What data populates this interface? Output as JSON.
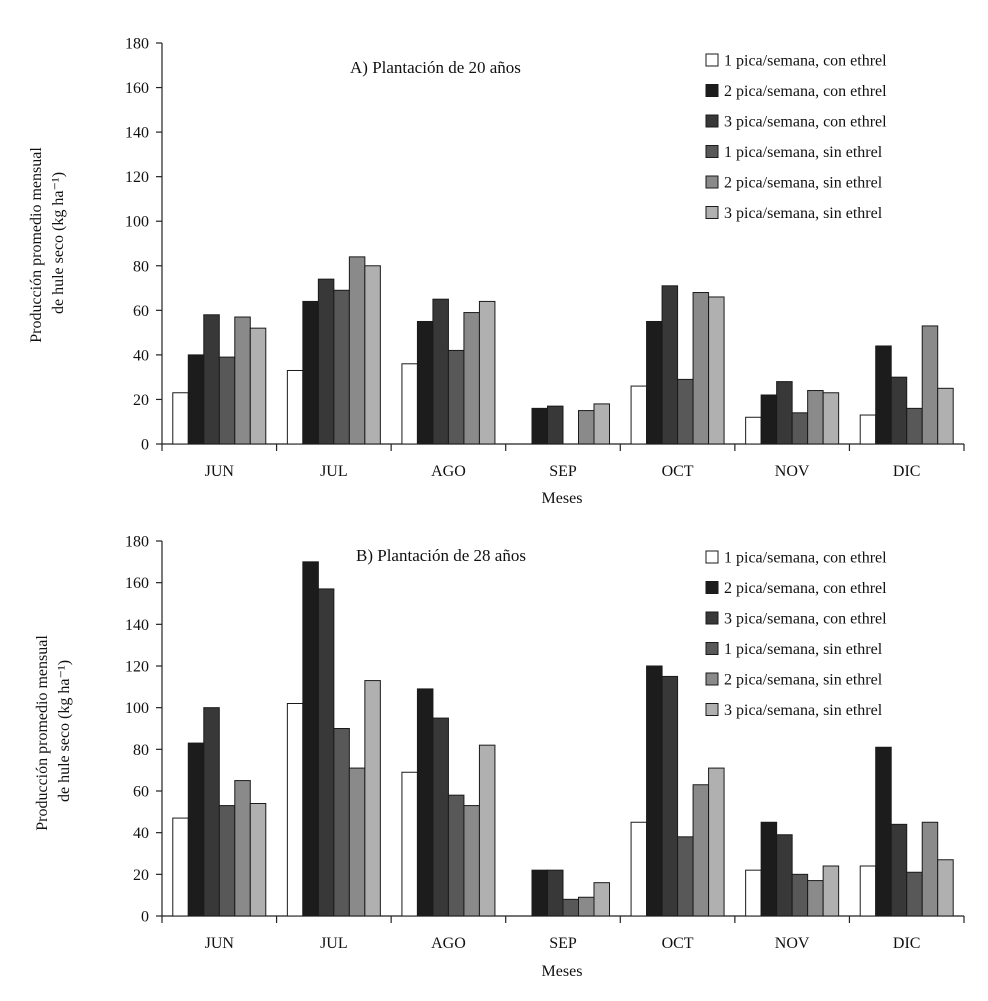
{
  "chart_data": [
    {
      "type": "bar",
      "title": "A) Plantación de 20 años",
      "xlabel": "Meses",
      "ylabel": [
        "Producción promedio mensual",
        "de hule seco (kg ha⁻¹)"
      ],
      "ylim": [
        0,
        180
      ],
      "yticks": [
        "0",
        "20",
        "40",
        "60",
        "80",
        "100",
        "120",
        "140",
        "160",
        "180"
      ],
      "grid": false,
      "legend_position": "top-right",
      "categories": [
        "JUN",
        "JUL",
        "AGO",
        "SEP",
        "OCT",
        "NOV",
        "DIC"
      ],
      "series": [
        {
          "name": "1 pica/semana, con ethrel",
          "color": "#ffffff",
          "values": [
            23,
            33,
            36,
            0,
            26,
            12,
            13
          ]
        },
        {
          "name": "2 pica/semana, con ethrel",
          "color": "#1c1c1c",
          "values": [
            40,
            64,
            55,
            16,
            55,
            22,
            44
          ]
        },
        {
          "name": "3 pica/semana, con ethrel",
          "color": "#383838",
          "values": [
            58,
            74,
            65,
            17,
            71,
            28,
            30
          ]
        },
        {
          "name": "1 pica/semana, sin ethrel",
          "color": "#585858",
          "values": [
            39,
            69,
            42,
            0,
            29,
            14,
            16
          ]
        },
        {
          "name": "2 pica/semana, sin ethrel",
          "color": "#8a8a8a",
          "values": [
            57,
            84,
            59,
            15,
            68,
            24,
            53
          ]
        },
        {
          "name": "3 pica/semana, sin ethrel",
          "color": "#b0b0b0",
          "values": [
            52,
            80,
            64,
            18,
            66,
            23,
            25
          ]
        }
      ]
    },
    {
      "type": "bar",
      "title": "B) Plantación de 28 años",
      "xlabel": "Meses",
      "ylabel": [
        "Producción promedio mensual",
        "de hule seco (kg ha⁻¹)"
      ],
      "ylim": [
        0,
        180
      ],
      "yticks": [
        "0",
        "20",
        "40",
        "60",
        "80",
        "100",
        "120",
        "140",
        "160",
        "180"
      ],
      "grid": false,
      "legend_position": "top-right",
      "categories": [
        "JUN",
        "JUL",
        "AGO",
        "SEP",
        "OCT",
        "NOV",
        "DIC"
      ],
      "series": [
        {
          "name": "1 pica/semana, con ethrel",
          "color": "#ffffff",
          "values": [
            47,
            102,
            69,
            0,
            45,
            22,
            24
          ]
        },
        {
          "name": "2 pica/semana, con ethrel",
          "color": "#1c1c1c",
          "values": [
            83,
            170,
            109,
            22,
            120,
            45,
            81
          ]
        },
        {
          "name": "3 pica/semana, con ethrel",
          "color": "#383838",
          "values": [
            100,
            157,
            95,
            22,
            115,
            39,
            44
          ]
        },
        {
          "name": "1 pica/semana, sin ethrel",
          "color": "#585858",
          "values": [
            53,
            90,
            58,
            8,
            38,
            20,
            21
          ]
        },
        {
          "name": "2 pica/semana, sin ethrel",
          "color": "#8a8a8a",
          "values": [
            65,
            71,
            53,
            9,
            63,
            17,
            45
          ]
        },
        {
          "name": "3 pica/semana, sin ethrel",
          "color": "#b0b0b0",
          "values": [
            54,
            113,
            82,
            16,
            71,
            24,
            27
          ]
        }
      ]
    }
  ]
}
